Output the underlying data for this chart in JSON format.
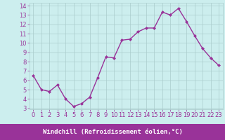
{
  "x": [
    0,
    1,
    2,
    3,
    4,
    5,
    6,
    7,
    8,
    9,
    10,
    11,
    12,
    13,
    14,
    15,
    16,
    17,
    18,
    19,
    20,
    21,
    22,
    23
  ],
  "y": [
    6.5,
    5.0,
    4.8,
    5.5,
    4.0,
    3.2,
    3.5,
    4.2,
    6.3,
    8.5,
    8.4,
    10.3,
    10.4,
    11.2,
    11.6,
    11.6,
    13.3,
    13.0,
    13.7,
    12.3,
    10.8,
    9.4,
    8.4,
    7.6
  ],
  "line_color": "#993399",
  "marker": "D",
  "marker_size": 2.0,
  "linewidth": 1.0,
  "bg_color": "#cceeee",
  "grid_color": "#aacccc",
  "xlabel": "Windchill (Refroidissement éolien,°C)",
  "ylim_min": 3,
  "ylim_max": 14,
  "xlim_min": -0.5,
  "xlim_max": 23.5,
  "yticks": [
    3,
    4,
    5,
    6,
    7,
    8,
    9,
    10,
    11,
    12,
    13,
    14
  ],
  "xticks": [
    0,
    1,
    2,
    3,
    4,
    5,
    6,
    7,
    8,
    9,
    10,
    11,
    12,
    13,
    14,
    15,
    16,
    17,
    18,
    19,
    20,
    21,
    22,
    23
  ],
  "xlabel_fontsize": 6.5,
  "tick_fontsize": 6.0,
  "tick_color": "#993399",
  "xlabel_bg": "#993399",
  "xlabel_fg": "#ffffff",
  "grid_linewidth": 0.5
}
